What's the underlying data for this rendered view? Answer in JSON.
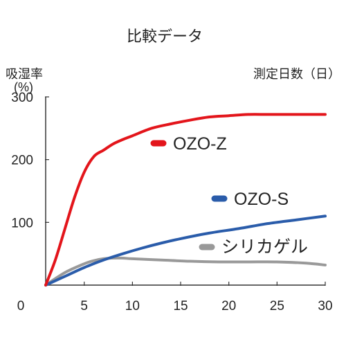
{
  "chart_data": {
    "type": "line",
    "title": "比較データ",
    "ylabel": "吸湿率",
    "ylabel_unit": "(%)",
    "xlabel": "測定日数（日）",
    "origin_label": "0",
    "x_ticks": [
      5,
      10,
      15,
      20,
      25,
      30
    ],
    "y_ticks": [
      100,
      200,
      300
    ],
    "xlim": [
      1,
      30
    ],
    "ylim": [
      0,
      300
    ],
    "grid": false,
    "series": [
      {
        "name": "OZO-Z",
        "color": "#e3151b",
        "x": [
          1,
          2,
          3,
          4,
          5,
          6,
          7,
          8,
          9,
          10,
          12,
          14,
          16,
          18,
          20,
          22,
          24,
          26,
          28,
          30
        ],
        "y": [
          0,
          40,
          90,
          140,
          180,
          205,
          215,
          225,
          232,
          238,
          250,
          257,
          263,
          268,
          270,
          272,
          272,
          272,
          272,
          272
        ]
      },
      {
        "name": "OZO-S",
        "color": "#2a5caa",
        "x": [
          1,
          3,
          5,
          7,
          9,
          11,
          13,
          15,
          18,
          21,
          24,
          27,
          30
        ],
        "y": [
          0,
          14,
          28,
          40,
          50,
          59,
          67,
          74,
          83,
          90,
          98,
          104,
          110
        ]
      },
      {
        "name": "シリカゲル",
        "color": "#999999",
        "x": [
          1,
          3,
          5,
          6,
          7,
          8,
          9,
          10,
          13,
          16,
          19,
          22,
          25,
          28,
          30
        ],
        "y": [
          0,
          20,
          34,
          39,
          42,
          43,
          43,
          42,
          40,
          38,
          37,
          37,
          37,
          35,
          32
        ]
      }
    ],
    "legend": "inline"
  }
}
